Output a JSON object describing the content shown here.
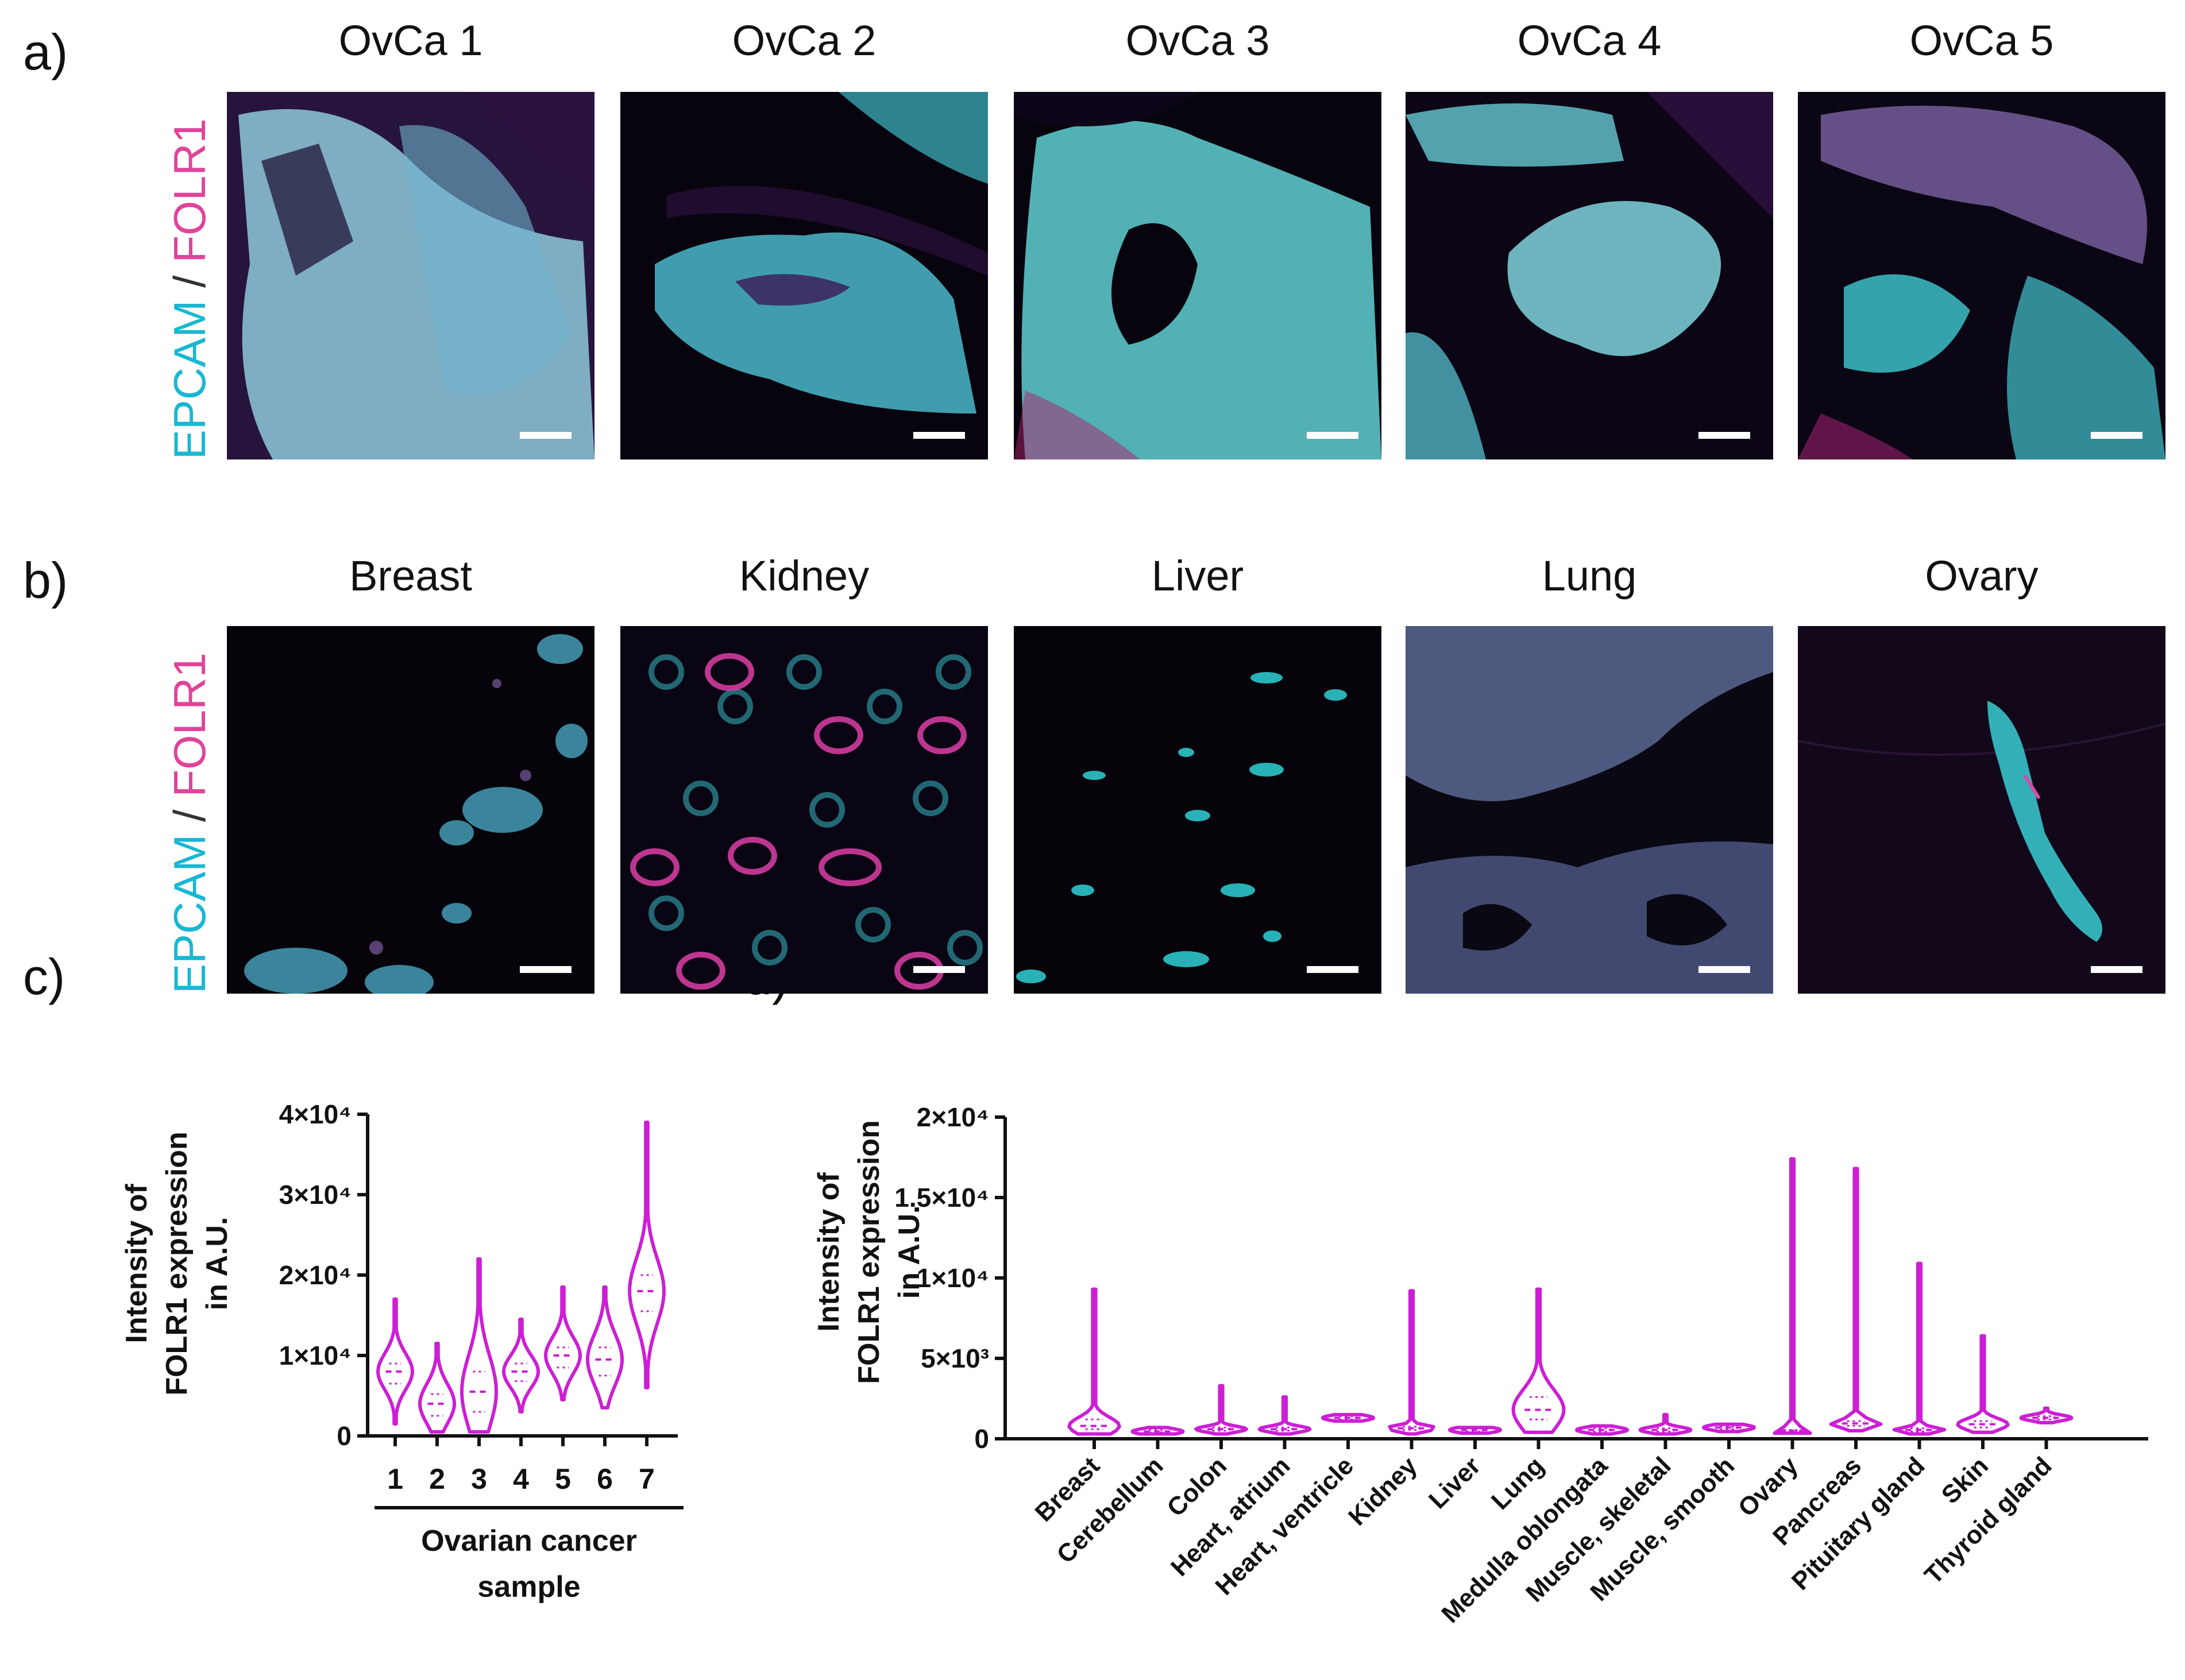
{
  "panels": {
    "a": {
      "letter": "a)",
      "titles": [
        "OvCa 1",
        "OvCa 2",
        "OvCa 3",
        "OvCa 4",
        "OvCa 5"
      ],
      "stain": {
        "marker1": "EPCAM",
        "sep": " / ",
        "marker2": "FOLR1"
      }
    },
    "b": {
      "letter": "b)",
      "titles": [
        "Breast",
        "Kidney",
        "Liver",
        "Lung",
        "Ovary"
      ],
      "stain": {
        "marker1": "EPCAM",
        "sep": " / ",
        "marker2": "FOLR1"
      }
    },
    "c": {
      "letter": "c)"
    },
    "d": {
      "letter": "d)"
    }
  },
  "colors": {
    "epcam": "#19b7d2",
    "folr1": "#e0449a",
    "violin": "#cc1fd4",
    "tissue_bg": "#05030a"
  },
  "chart_data": [
    {
      "id": "c",
      "type": "violin",
      "ylabel": "Intensity of FOLR1 expression in A.U.",
      "xlabel": "Ovarian cancer sample",
      "categories": [
        "1",
        "2",
        "3",
        "4",
        "5",
        "6",
        "7"
      ],
      "yticks": [
        0,
        10000,
        20000,
        30000,
        40000
      ],
      "yticklabels": [
        "0",
        "1×10⁴",
        "2×10⁴",
        "3×10⁴",
        "4×10⁴"
      ],
      "ylim": [
        0,
        40000
      ],
      "series": [
        {
          "min": 1500,
          "q1": 6500,
          "median": 8000,
          "q3": 9000,
          "max": 17000
        },
        {
          "min": 500,
          "q1": 2500,
          "median": 4000,
          "q3": 5200,
          "max": 11500
        },
        {
          "min": 500,
          "q1": 3000,
          "median": 5500,
          "q3": 8000,
          "max": 22000
        },
        {
          "min": 3000,
          "q1": 6800,
          "median": 8000,
          "q3": 9000,
          "max": 14500
        },
        {
          "min": 4500,
          "q1": 8500,
          "median": 10000,
          "q3": 11000,
          "max": 18500
        },
        {
          "min": 3500,
          "q1": 7500,
          "median": 9500,
          "q3": 11000,
          "max": 18500
        },
        {
          "min": 6000,
          "q1": 15500,
          "median": 18000,
          "q3": 20000,
          "max": 39000
        }
      ]
    },
    {
      "id": "d",
      "type": "violin",
      "ylabel": "Intensity of FOLR1 expression in A.U.",
      "categories": [
        "Breast",
        "Cerebellum",
        "Colon",
        "Heart, atrium",
        "Heart, ventricle",
        "Kidney",
        "Liver",
        "Lung",
        "Medulla oblongata",
        "Muscle, skeletal",
        "Muscle, smooth",
        "Ovary",
        "Pancreas",
        "Pituitary gland",
        "Skin",
        "Thyroid gland"
      ],
      "yticks": [
        0,
        5000,
        10000,
        15000,
        20000
      ],
      "yticklabels": [
        "0",
        "5×10³",
        "1×10⁴",
        "1.5×10⁴",
        "2×10⁴"
      ],
      "ylim": [
        0,
        20000
      ],
      "series": [
        {
          "min": 300,
          "q1": 600,
          "median": 800,
          "q3": 1200,
          "max": 9300
        },
        {
          "min": 300,
          "q1": 400,
          "median": 450,
          "q3": 550,
          "max": 700
        },
        {
          "min": 300,
          "q1": 500,
          "median": 600,
          "q3": 700,
          "max": 3300
        },
        {
          "min": 300,
          "q1": 500,
          "median": 600,
          "q3": 700,
          "max": 2600
        },
        {
          "min": 1100,
          "q1": 1200,
          "median": 1300,
          "q3": 1400,
          "max": 1500
        },
        {
          "min": 300,
          "q1": 550,
          "median": 650,
          "q3": 750,
          "max": 9200
        },
        {
          "min": 350,
          "q1": 450,
          "median": 550,
          "q3": 650,
          "max": 700
        },
        {
          "min": 400,
          "q1": 1200,
          "median": 1800,
          "q3": 2600,
          "max": 9300
        },
        {
          "min": 300,
          "q1": 450,
          "median": 550,
          "q3": 650,
          "max": 800
        },
        {
          "min": 300,
          "q1": 450,
          "median": 550,
          "q3": 650,
          "max": 1500
        },
        {
          "min": 450,
          "q1": 600,
          "median": 700,
          "q3": 750,
          "max": 900
        },
        {
          "min": 350,
          "q1": 450,
          "median": 500,
          "q3": 550,
          "max": 17400
        },
        {
          "min": 500,
          "q1": 800,
          "median": 950,
          "q3": 1100,
          "max": 16800
        },
        {
          "min": 300,
          "q1": 450,
          "median": 550,
          "q3": 650,
          "max": 10900
        },
        {
          "min": 400,
          "q1": 700,
          "median": 900,
          "q3": 1100,
          "max": 6400
        },
        {
          "min": 1000,
          "q1": 1200,
          "median": 1300,
          "q3": 1400,
          "max": 1900
        }
      ]
    }
  ]
}
